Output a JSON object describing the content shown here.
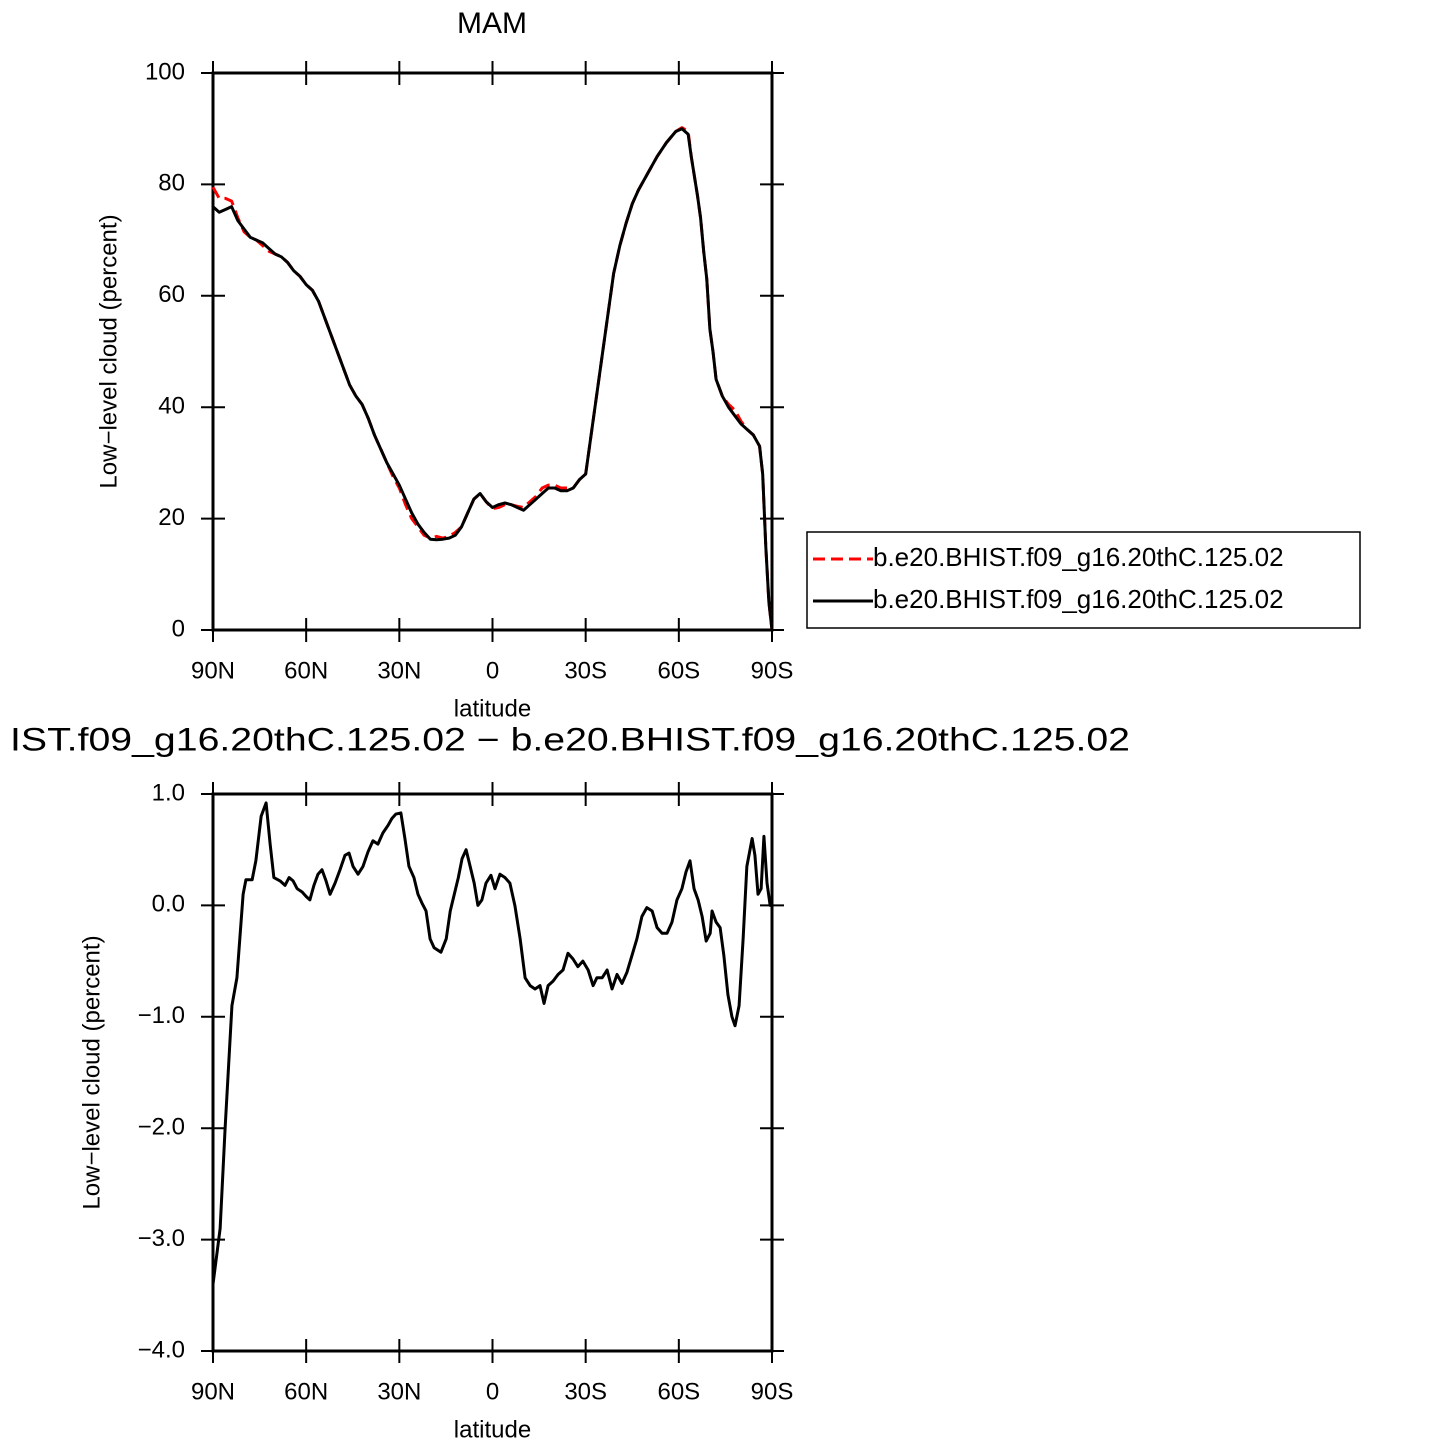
{
  "chart_data": [
    {
      "type": "line",
      "title": "MAM",
      "xlabel": "latitude",
      "ylabel": "Low−level cloud (percent)",
      "x": [
        90,
        88,
        86,
        84,
        82,
        80,
        78,
        76,
        74,
        72,
        70,
        68,
        66,
        64,
        62,
        60,
        58,
        56,
        54,
        52,
        50,
        48,
        46,
        44,
        42,
        40,
        38,
        36,
        34,
        32,
        30,
        28,
        26,
        24,
        22,
        20,
        18,
        16,
        14,
        12,
        10,
        8,
        6,
        4,
        2,
        0,
        -2,
        -4,
        -6,
        -8,
        -10,
        -12,
        -14,
        -16,
        -18,
        -20,
        -22,
        -24,
        -26,
        -28,
        -30,
        -32,
        -33,
        -35,
        -37,
        -39,
        -41,
        -43,
        -45,
        -47,
        -50,
        -53,
        -56,
        -59,
        -61,
        -63,
        -64,
        -66,
        -67,
        -68,
        -69,
        -70,
        -71,
        -72,
        -74,
        -76,
        -78,
        -80,
        -82,
        -84,
        -86,
        -87,
        -88,
        -89,
        -90
      ],
      "series": [
        {
          "name": "b.e20.BHIST.f09_g16.20thC.125.02",
          "color": "#ff0000",
          "style": "dashed",
          "values": [
            79.5,
            77.5,
            77.5,
            77,
            74,
            71.5,
            70.5,
            70,
            69,
            68,
            67.5,
            67,
            66,
            64.5,
            63.5,
            62,
            61,
            59,
            56,
            53,
            50,
            47,
            44,
            42,
            40.5,
            38,
            35,
            32.5,
            30,
            27.5,
            25.5,
            22.5,
            20,
            18.5,
            17,
            16.5,
            16.8,
            16.5,
            16.8,
            17.5,
            18.5,
            21,
            23.5,
            24.5,
            23,
            21.8,
            22,
            22.5,
            22.5,
            22.2,
            22,
            23,
            24,
            25.5,
            26,
            26,
            25.5,
            25.5,
            25.5,
            27,
            28,
            36,
            40,
            48,
            56,
            64,
            69,
            73,
            76.5,
            79,
            82,
            85,
            87.5,
            89.5,
            90.2,
            89.5,
            85,
            78,
            74,
            68,
            63,
            54,
            50,
            45,
            42,
            40.5,
            39.5,
            37.5,
            36,
            35,
            33,
            28,
            15,
            5,
            0
          ]
        },
        {
          "name": "b.e20.BHIST.f09_g16.20thC.125.02",
          "color": "#000000",
          "style": "solid",
          "values": [
            76,
            75,
            75.5,
            76,
            73.5,
            72,
            70.5,
            70,
            69.5,
            68.5,
            67.5,
            67,
            66,
            64.5,
            63.5,
            62,
            61,
            59,
            56,
            53,
            50,
            47,
            44,
            42,
            40.5,
            38,
            35,
            32.5,
            30,
            28,
            26,
            23.5,
            21,
            19,
            17.5,
            16.3,
            16.2,
            16.3,
            16.5,
            17,
            18.5,
            21,
            23.5,
            24.5,
            23,
            22,
            22.5,
            22.8,
            22.5,
            22,
            21.5,
            22.5,
            23.5,
            24.5,
            25.5,
            25.5,
            25,
            25,
            25.5,
            27,
            28,
            36,
            40,
            48,
            56,
            64,
            69,
            73,
            76.5,
            79,
            82,
            85,
            87.5,
            89.5,
            90,
            89,
            85,
            78,
            74,
            68,
            63,
            54,
            50,
            45,
            42,
            40,
            38.5,
            37,
            36,
            35,
            33,
            28,
            15,
            5,
            0
          ]
        }
      ],
      "xlim": [
        90,
        -90
      ],
      "xticks": [
        {
          "value": 90,
          "label": "90N"
        },
        {
          "value": 60,
          "label": "60N"
        },
        {
          "value": 30,
          "label": "30N"
        },
        0,
        {
          "value": -30,
          "label": "30S"
        },
        {
          "value": -60,
          "label": "60S"
        },
        {
          "value": -90,
          "label": "90S"
        }
      ],
      "ylim": [
        0,
        100
      ],
      "yticks": [
        0,
        20,
        40,
        60,
        80,
        100
      ],
      "legend_position": "right"
    },
    {
      "type": "line",
      "title": "IST.f09_g16.20thC.125.02 − b.e20.BHIST.f09_g16.20thC.125.02",
      "xlabel": "latitude",
      "ylabel": "Low−level cloud (percent)",
      "x": [
        90,
        87.7,
        86.1,
        83.9,
        82.3,
        80.3,
        79.4,
        77.4,
        76.2,
        74.5,
        72.9,
        71.6,
        70.4,
        68.4,
        66.8,
        65.5,
        64.2,
        62.9,
        61.3,
        60,
        58.8,
        57.5,
        56.2,
        54.9,
        53.6,
        52.3,
        50.7,
        49.1,
        47.5,
        46.2,
        44.9,
        43.3,
        41.7,
        40.1,
        38.5,
        36.9,
        35.3,
        33.6,
        32.4,
        31.1,
        29.5,
        28.2,
        26.9,
        25.3,
        24,
        22.7,
        21.4,
        20.1,
        18.8,
        16.6,
        14.9,
        13.6,
        12.3,
        11,
        9.8,
        8.5,
        7.2,
        5.9,
        4.7,
        3.4,
        2.1,
        0.5,
        -0.8,
        -2.4,
        -4,
        -5.6,
        -7.2,
        -8.9,
        -10.5,
        -12.1,
        -13.7,
        -15.3,
        -16.6,
        -17.9,
        -19.5,
        -21.1,
        -22.7,
        -24.3,
        -25.9,
        -27.5,
        -29.1,
        -30.8,
        -32.4,
        -33.6,
        -35.3,
        -36.9,
        -38.5,
        -40.1,
        -41.7,
        -43.3,
        -44.9,
        -46.5,
        -48.1,
        -49.7,
        -51.4,
        -53,
        -54.6,
        -56.2,
        -57.8,
        -59.4,
        -61,
        -62.3,
        -63.6,
        -64.9,
        -66.2,
        -67.5,
        -68.8,
        -70.1,
        -70.7,
        -72,
        -73.3,
        -74.5,
        -75.8,
        -77.1,
        -78.1,
        -79.4,
        -80.7,
        -81.9,
        -83.6,
        -84.5,
        -85.5,
        -86.5,
        -87.4,
        -88.4,
        -89.4,
        -90
      ],
      "series": [
        {
          "color": "#000000",
          "style": "solid",
          "values": [
            -3.4,
            -2.9,
            -2.0,
            -0.9,
            -0.65,
            0.1,
            0.23,
            0.23,
            0.4,
            0.8,
            0.92,
            0.55,
            0.25,
            0.22,
            0.18,
            0.25,
            0.22,
            0.15,
            0.12,
            0.08,
            0.05,
            0.18,
            0.28,
            0.32,
            0.22,
            0.1,
            0.2,
            0.32,
            0.45,
            0.47,
            0.35,
            0.28,
            0.35,
            0.48,
            0.58,
            0.55,
            0.65,
            0.72,
            0.78,
            0.82,
            0.83,
            0.6,
            0.35,
            0.25,
            0.1,
            0.02,
            -0.05,
            -0.3,
            -0.38,
            -0.42,
            -0.3,
            -0.05,
            0.1,
            0.25,
            0.42,
            0.5,
            0.35,
            0.2,
            0,
            0.05,
            0.2,
            0.27,
            0.15,
            0.28,
            0.25,
            0.2,
            0,
            -0.3,
            -0.65,
            -0.72,
            -0.75,
            -0.72,
            -0.88,
            -0.72,
            -0.68,
            -0.62,
            -0.58,
            -0.43,
            -0.48,
            -0.55,
            -0.5,
            -0.58,
            -0.72,
            -0.65,
            -0.65,
            -0.58,
            -0.75,
            -0.62,
            -0.7,
            -0.6,
            -0.45,
            -0.3,
            -0.1,
            -0.02,
            -0.05,
            -0.2,
            -0.25,
            -0.25,
            -0.15,
            0.05,
            0.15,
            0.3,
            0.4,
            0.15,
            0.05,
            -0.1,
            -0.32,
            -0.25,
            -0.05,
            -0.15,
            -0.2,
            -0.45,
            -0.8,
            -1.0,
            -1.08,
            -0.9,
            -0.3,
            0.35,
            0.6,
            0.45,
            0.1,
            0.15,
            0.62,
            0.2,
            0,
            0
          ]
        }
      ],
      "xlim": [
        90,
        -90
      ],
      "xticks": [
        {
          "value": 90,
          "label": "90N"
        },
        {
          "value": 60,
          "label": "60N"
        },
        {
          "value": 30,
          "label": "30N"
        },
        0,
        {
          "value": -30,
          "label": "30S"
        },
        {
          "value": -60,
          "label": "60S"
        },
        {
          "value": -90,
          "label": "90S"
        }
      ],
      "ylim": [
        -4,
        1
      ],
      "yticks": [
        {
          "value": -4,
          "label": "−4.0"
        },
        {
          "value": -3,
          "label": "−3.0"
        },
        {
          "value": -2,
          "label": "−2.0"
        },
        {
          "value": -1,
          "label": "−1.0"
        },
        {
          "value": 0,
          "label": "0.0"
        },
        {
          "value": 1,
          "label": "1.0"
        }
      ]
    }
  ]
}
